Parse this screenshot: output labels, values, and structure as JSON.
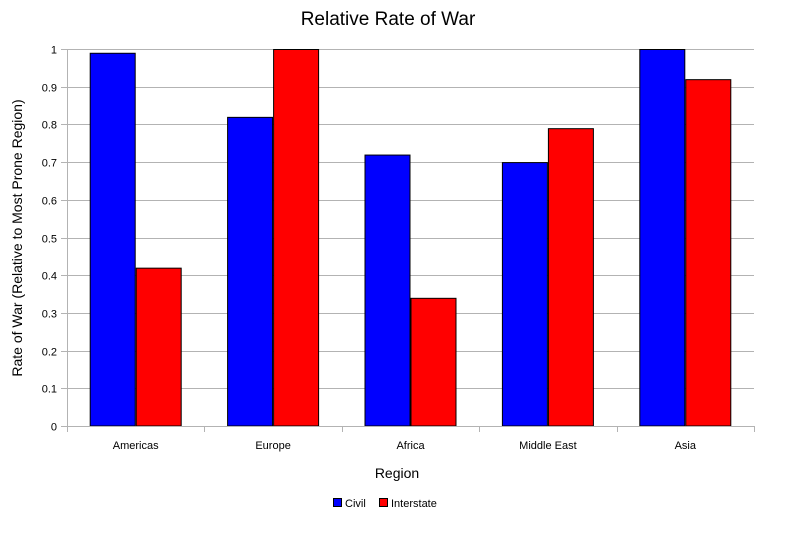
{
  "chart_data": {
    "type": "bar",
    "title": "Relative Rate of War",
    "xlabel": "Region",
    "ylabel": "Rate of War (Relative to Most Prone Region)",
    "categories": [
      "Americas",
      "Europe",
      "Africa",
      "Middle East",
      "Asia"
    ],
    "series": [
      {
        "name": "Civil",
        "values": [
          0.99,
          0.82,
          0.72,
          0.7,
          1.0
        ],
        "color": "#0000ff"
      },
      {
        "name": "Interstate",
        "values": [
          0.42,
          1.0,
          0.34,
          0.79,
          0.92
        ],
        "color": "#ff0000"
      }
    ],
    "ylim": [
      0,
      1
    ],
    "yticks": [
      0,
      0.1,
      0.2,
      0.3,
      0.4,
      0.5,
      0.6,
      0.7,
      0.8,
      0.9,
      1
    ],
    "ytick_labels": [
      "0",
      "0.1",
      "0.2",
      "0.3",
      "0.4",
      "0.5",
      "0.6",
      "0.7",
      "0.8",
      "0.9",
      "1"
    ],
    "grid": true,
    "legend_position": "bottom"
  }
}
